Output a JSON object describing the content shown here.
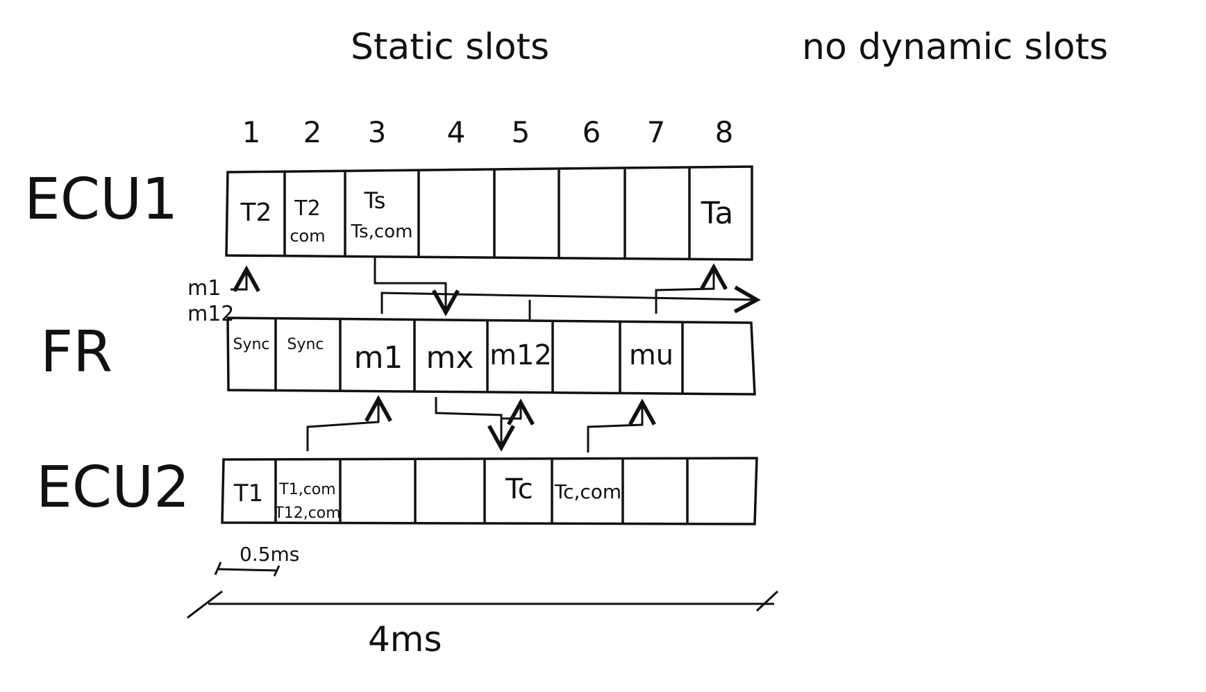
{
  "heading": {
    "static": "Static slots",
    "dynamic": "no dynamic slots"
  },
  "slot_numbers": [
    "1",
    "2",
    "3",
    "4",
    "5",
    "6",
    "7",
    "8"
  ],
  "rows": {
    "ecu1": {
      "label": "ECU1",
      "cells": [
        {
          "main": "T2",
          "sub": ""
        },
        {
          "main": "T2",
          "sub": "com"
        },
        {
          "main": "Ts",
          "sub": "Ts,com"
        },
        {
          "main": "",
          "sub": ""
        },
        {
          "main": "",
          "sub": ""
        },
        {
          "main": "",
          "sub": ""
        },
        {
          "main": "",
          "sub": ""
        },
        {
          "main": "Ta",
          "sub": ""
        }
      ]
    },
    "fr": {
      "label": "FR",
      "cells": [
        {
          "main": "Sync",
          "sub": ""
        },
        {
          "main": "Sync",
          "sub": ""
        },
        {
          "main": "m1",
          "sub": ""
        },
        {
          "main": "mx",
          "sub": ""
        },
        {
          "main": "m12",
          "sub": ""
        },
        {
          "main": "",
          "sub": ""
        },
        {
          "main": "mu",
          "sub": ""
        },
        {
          "main": "",
          "sub": ""
        }
      ]
    },
    "ecu2": {
      "label": "ECU2",
      "cells": [
        {
          "main": "T1",
          "sub": ""
        },
        {
          "main": "T1,com",
          "sub": "T12,com"
        },
        {
          "main": "",
          "sub": ""
        },
        {
          "main": "",
          "sub": ""
        },
        {
          "main": "Tc",
          "sub": ""
        },
        {
          "main": "Tc,com",
          "sub": ""
        },
        {
          "main": "",
          "sub": ""
        },
        {
          "main": "",
          "sub": ""
        }
      ]
    }
  },
  "side_labels": {
    "m1": "m1",
    "m12": "m12"
  },
  "timing": {
    "slot": "0.5ms",
    "cycle": "4ms"
  }
}
